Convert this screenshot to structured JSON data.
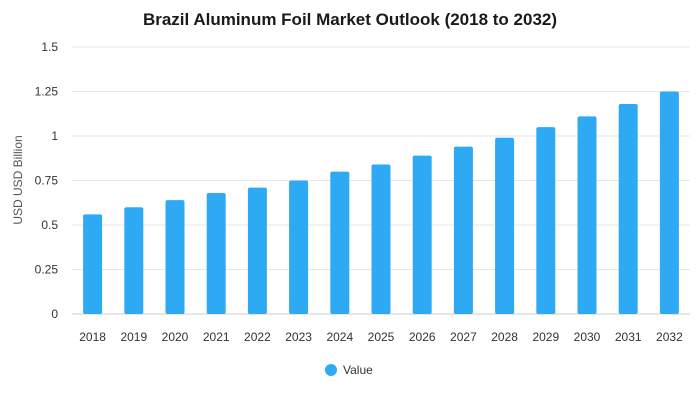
{
  "chart_data": {
    "type": "bar",
    "title": "Brazil Aluminum Foil Market Outlook (2018 to 2032)",
    "xlabel": "",
    "ylabel": "USD USD Billion",
    "categories": [
      "2018",
      "2019",
      "2020",
      "2021",
      "2022",
      "2023",
      "2024",
      "2025",
      "2026",
      "2027",
      "2028",
      "2029",
      "2030",
      "2031",
      "2032"
    ],
    "series": [
      {
        "name": "Value",
        "color": "#2EAAF5",
        "values": [
          0.56,
          0.6,
          0.64,
          0.68,
          0.71,
          0.75,
          0.8,
          0.84,
          0.89,
          0.94,
          0.99,
          1.05,
          1.11,
          1.18,
          1.25
        ]
      }
    ],
    "ylim": [
      0,
      1.5
    ],
    "yticks": [
      "0",
      "0.25",
      "0.5",
      "0.75",
      "1",
      "1.25",
      "1.5"
    ],
    "grid": true,
    "legend_position": "bottom-center"
  }
}
